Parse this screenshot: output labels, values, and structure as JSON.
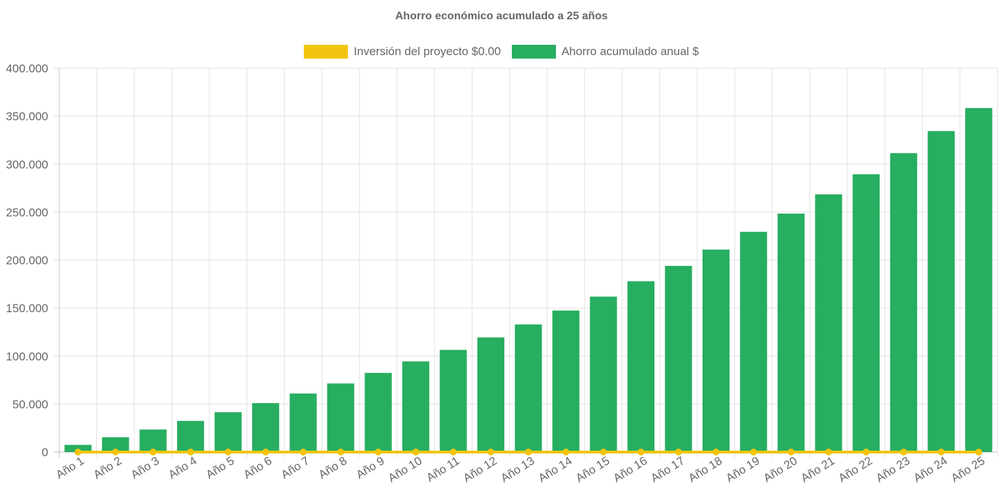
{
  "chart_data": {
    "type": "bar",
    "title": "Ahorro económico acumulado a 25 años",
    "categories": [
      "Año 1",
      "Año 2",
      "Año 3",
      "Año 4",
      "Año 5",
      "Año 6",
      "Año 7",
      "Año 8",
      "Año 9",
      "Año 10",
      "Año 11",
      "Año 12",
      "Año 13",
      "Año 14",
      "Año 15",
      "Año 16",
      "Año 17",
      "Año 18",
      "Año 19",
      "Año 20",
      "Año 21",
      "Año 22",
      "Año 23",
      "Año 24",
      "Año 25"
    ],
    "series": [
      {
        "name": "Inversión del proyecto $0.00",
        "type": "line",
        "color": "#f1c40f",
        "values": [
          0,
          0,
          0,
          0,
          0,
          0,
          0,
          0,
          0,
          0,
          0,
          0,
          0,
          0,
          0,
          0,
          0,
          0,
          0,
          0,
          0,
          0,
          0,
          0,
          0
        ]
      },
      {
        "name": "Ahorro acumulado anual $",
        "type": "bar",
        "color": "#27ae60",
        "values": [
          7500,
          15500,
          23500,
          32500,
          41500,
          51000,
          61000,
          71500,
          82500,
          94500,
          106500,
          119500,
          133000,
          147500,
          162000,
          178000,
          194000,
          211000,
          229500,
          248500,
          268500,
          289500,
          311500,
          334500,
          358500
        ]
      }
    ],
    "yticks": [
      "400.000",
      "350.000",
      "300.000",
      "250.000",
      "200.000",
      "150.000",
      "100.000",
      "50.000",
      "0"
    ],
    "ylim": [
      0,
      400000
    ],
    "grid": true,
    "legend_position": "top"
  }
}
